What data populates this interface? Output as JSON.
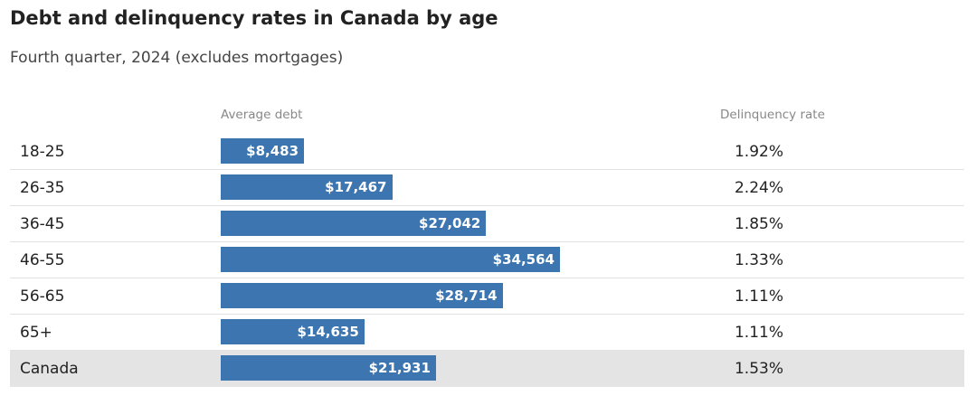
{
  "title": "Debt and delinquency rates in Canada by age",
  "subtitle": "Fourth quarter, 2024 (excludes mortgages)",
  "chart_data": {
    "type": "bar",
    "orientation": "horizontal",
    "title": "Debt and delinquency rates in Canada by age",
    "subtitle": "Fourth quarter, 2024 (excludes mortgages)",
    "columns": [
      "Average debt",
      "Delinquency rate"
    ],
    "categories": [
      "18-25",
      "26-35",
      "36-45",
      "46-55",
      "56-65",
      "65+",
      "Canada"
    ],
    "series": [
      {
        "name": "Average debt",
        "values": [
          8483,
          17467,
          27042,
          34564,
          28714,
          14635,
          21931
        ],
        "labels": [
          "$8,483",
          "$17,467",
          "$27,042",
          "$34,564",
          "$28,714",
          "$14,635",
          "$21,931"
        ]
      },
      {
        "name": "Delinquency rate",
        "values": [
          1.92,
          2.24,
          1.85,
          1.33,
          1.11,
          1.11,
          1.53
        ],
        "labels": [
          "1.92%",
          "2.24%",
          "1.85%",
          "1.33%",
          "1.11%",
          "1.11%",
          "1.53%"
        ]
      }
    ],
    "highlight_category": "Canada",
    "colors": {
      "bar": "#3c75af",
      "highlight_row": "#e4e4e4"
    }
  }
}
